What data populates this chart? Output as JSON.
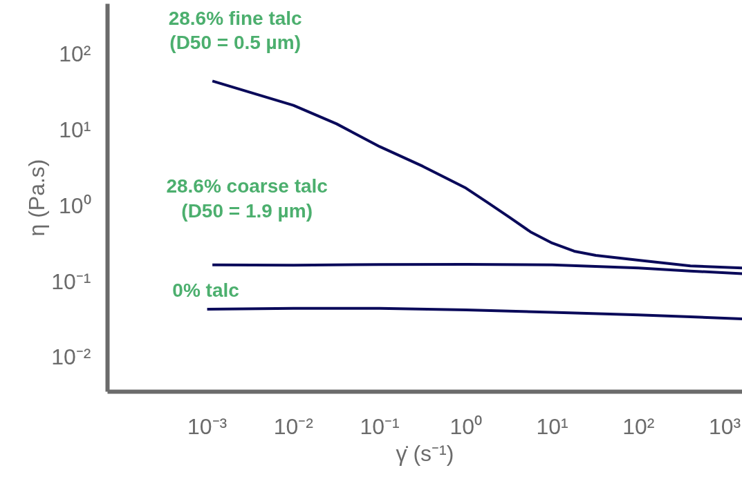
{
  "chart_data": {
    "type": "line",
    "xlabel": "γ̇ (s⁻¹)",
    "ylabel": "η (Pa.s)",
    "log": "xy",
    "grid": false,
    "xlim": [
      7e-05,
      1600
    ],
    "ylim": [
      0.0035,
      460
    ],
    "xticks": [
      {
        "value": 0.001,
        "label": "10⁻³"
      },
      {
        "value": 0.01,
        "label": "10⁻²"
      },
      {
        "value": 0.1,
        "label": "10⁻¹"
      },
      {
        "value": 1,
        "label": "10⁰"
      },
      {
        "value": 10,
        "label": "10¹"
      },
      {
        "value": 100,
        "label": "10²"
      },
      {
        "value": 1000,
        "label": "10³"
      }
    ],
    "yticks": [
      {
        "value": 0.01,
        "label": "10⁻²"
      },
      {
        "value": 0.1,
        "label": "10⁻¹"
      },
      {
        "value": 1,
        "label": "10⁰"
      },
      {
        "value": 10,
        "label": "10¹"
      },
      {
        "value": 100,
        "label": "10²"
      }
    ],
    "series": [
      {
        "name": "28.6% fine talc\n(D50 = 0.5 µm)",
        "color": "#0a0a5a",
        "x": [
          0.00115,
          0.01,
          0.0316,
          0.1,
          0.316,
          1,
          1.78,
          3.2,
          5.6,
          10,
          18,
          32,
          100,
          400,
          1600
        ],
        "values": [
          44,
          21,
          12,
          6,
          3.3,
          1.7,
          1.1,
          0.7,
          0.45,
          0.32,
          0.25,
          0.22,
          0.19,
          0.16,
          0.15
        ]
      },
      {
        "name": "28.6% coarse talc\n(D50 = 1.9 µm)",
        "color": "#0a0a5a",
        "x": [
          0.00115,
          0.01,
          0.1,
          1,
          10,
          100,
          400,
          1600
        ],
        "values": [
          0.165,
          0.163,
          0.167,
          0.168,
          0.165,
          0.15,
          0.137,
          0.126
        ]
      },
      {
        "name": "0% talc",
        "color": "#0a0a5a",
        "x": [
          0.001,
          0.01,
          0.1,
          1,
          10,
          100,
          400,
          1600
        ],
        "values": [
          0.043,
          0.044,
          0.044,
          0.042,
          0.039,
          0.036,
          0.034,
          0.032
        ]
      }
    ]
  }
}
